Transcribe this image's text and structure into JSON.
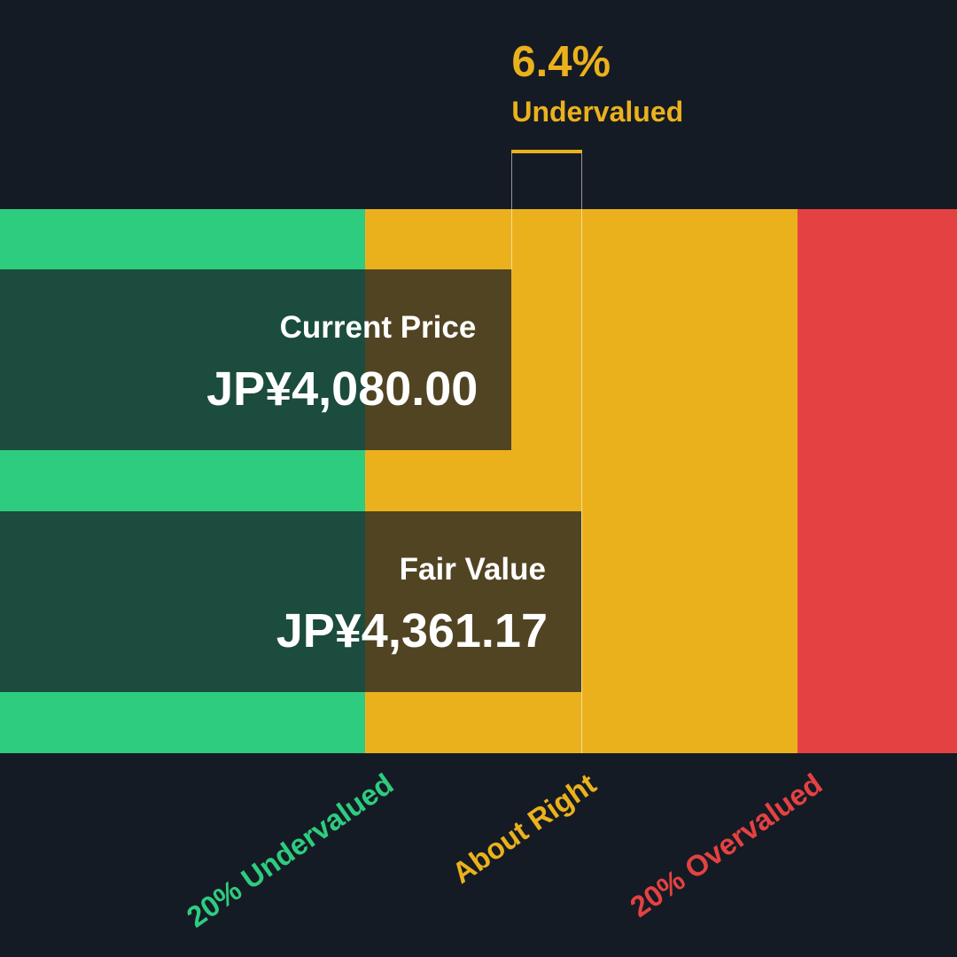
{
  "chart_data": {
    "type": "bar",
    "title": "",
    "currency": "JP¥",
    "series": [
      {
        "name": "Current Price",
        "value": 4080.0,
        "display": "JP¥4,080.00"
      },
      {
        "name": "Fair Value",
        "value": 4361.17,
        "display": "JP¥4,361.17"
      }
    ],
    "discount": {
      "value_percent": 6.4,
      "display": "6.4%",
      "label": "Undervalued"
    },
    "zones": [
      {
        "label": "20% Undervalued",
        "color": "#2ecc7f"
      },
      {
        "label": "About Right",
        "color": "#ebb11d"
      },
      {
        "label": "20% Overvalued",
        "color": "#e44242"
      }
    ],
    "label_colors": {
      "undervalued": "#2ecc7f",
      "about_right": "#ebb11d",
      "overvalued": "#e44242"
    },
    "background": "#151b24"
  }
}
